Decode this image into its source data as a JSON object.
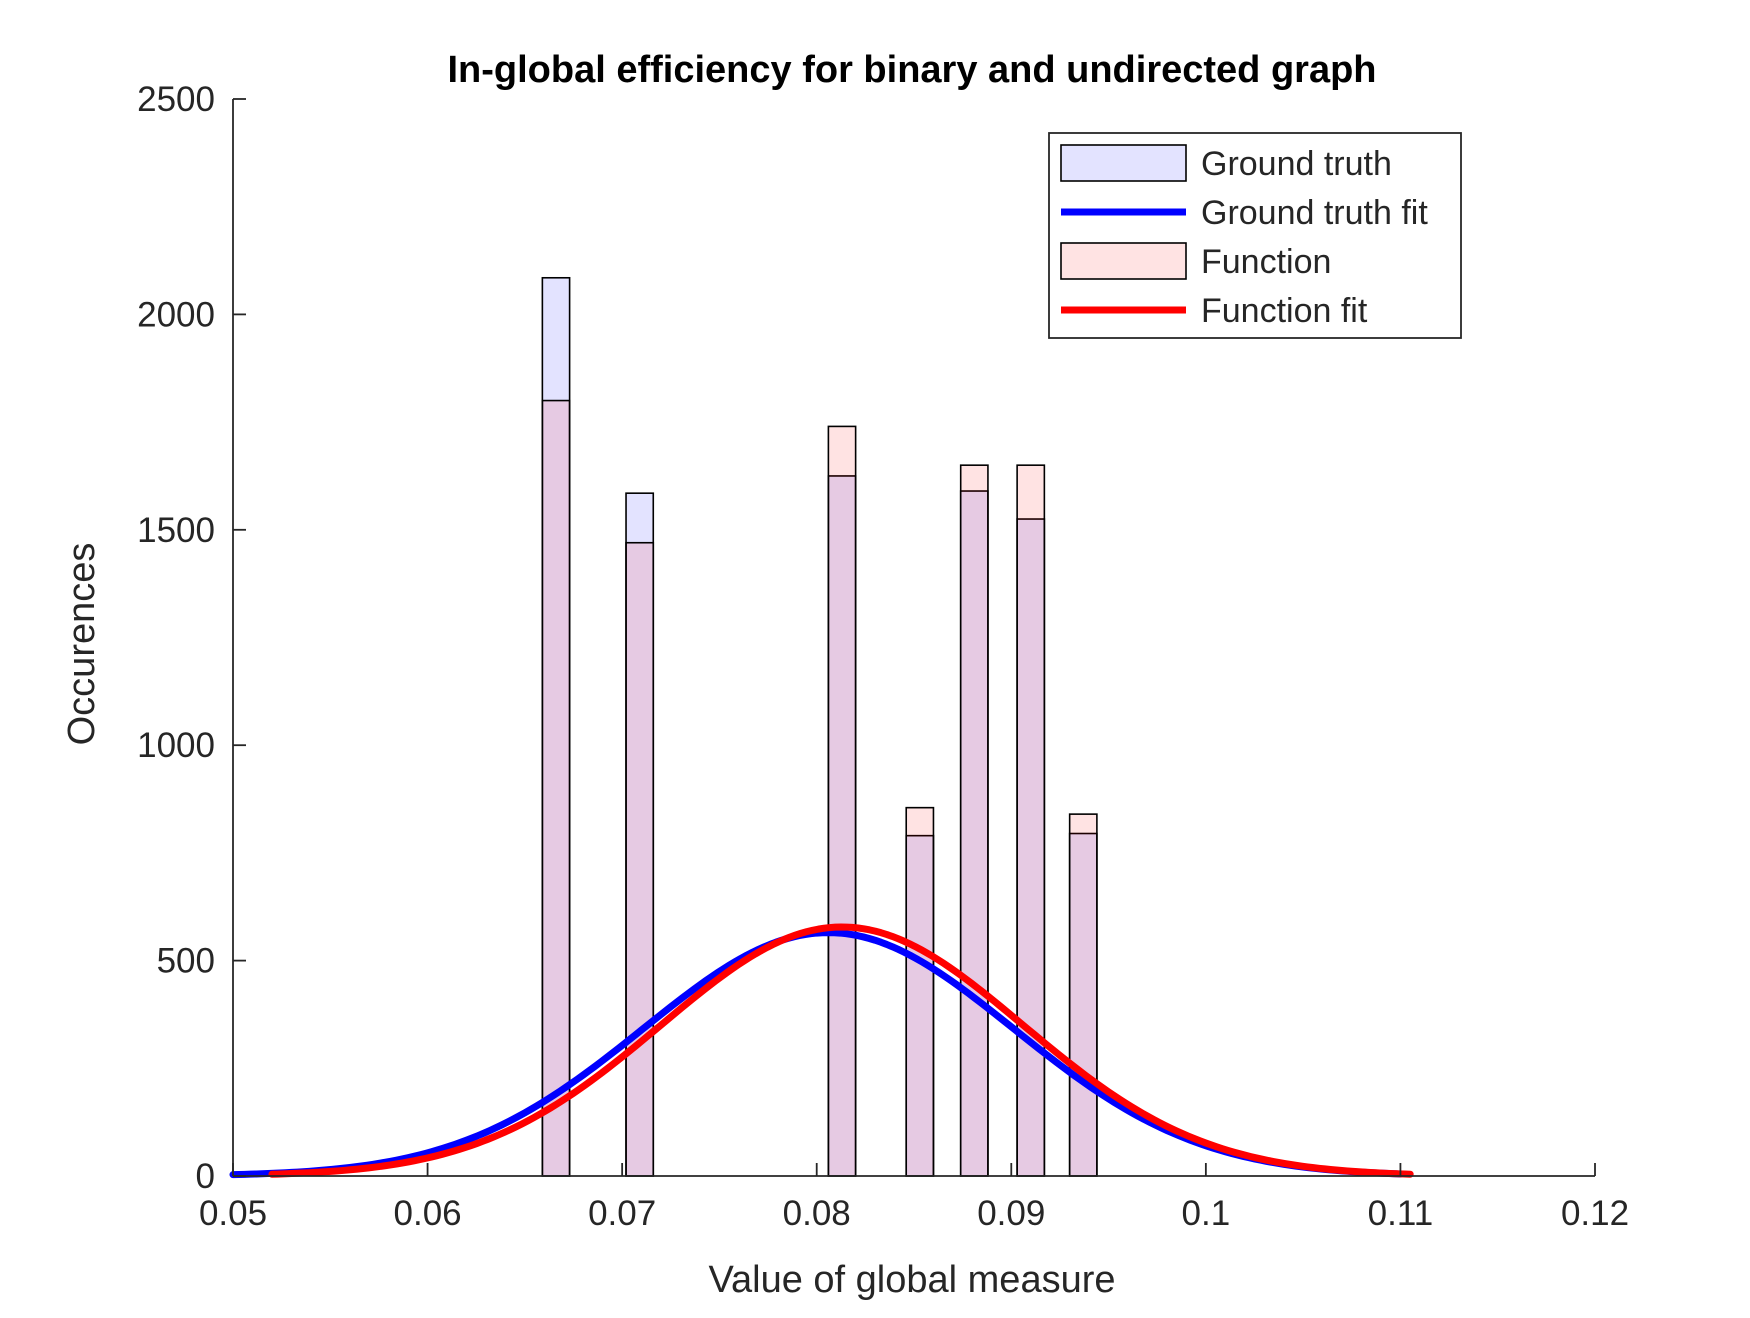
{
  "chart_data": {
    "type": "bar",
    "title": "In-global efficiency for binary and undirected graph",
    "xlabel": "Value of global measure",
    "ylabel": "Occurences",
    "xlim": [
      0.05,
      0.12
    ],
    "ylim": [
      0,
      2500
    ],
    "xticks": [
      "0.05",
      "0.06",
      "0.07",
      "0.08",
      "0.09",
      "0.1",
      "0.11",
      "0.12"
    ],
    "yticks": [
      "0",
      "500",
      "1000",
      "1500",
      "2000",
      "2500"
    ],
    "bin_width": 0.0014,
    "bin_centers": [
      0.0666,
      0.0709,
      0.0813,
      0.0853,
      0.0881,
      0.091,
      0.0937
    ],
    "series": [
      {
        "name": "Ground truth",
        "kind": "histogram",
        "color": "#0000ff",
        "values": [
          2085,
          1585,
          1625,
          790,
          1590,
          1525,
          795
        ]
      },
      {
        "name": "Ground truth fit",
        "kind": "normal-fit",
        "color": "#0000ff",
        "mean": 0.0806,
        "sigma": 0.0095,
        "peak": 565,
        "x_range": [
          0.05,
          0.11
        ]
      },
      {
        "name": "Function",
        "kind": "histogram",
        "color": "#ff0000",
        "values": [
          1800,
          1470,
          1740,
          855,
          1650,
          1650,
          840
        ]
      },
      {
        "name": "Function fit",
        "kind": "normal-fit",
        "color": "#ff0000",
        "mean": 0.0813,
        "sigma": 0.0093,
        "peak": 578,
        "x_range": [
          0.052,
          0.1105
        ]
      }
    ],
    "legend": {
      "position": "top-right",
      "entries": [
        "Ground truth",
        "Ground truth fit",
        "Function",
        "Function fit"
      ]
    },
    "grid": false
  }
}
